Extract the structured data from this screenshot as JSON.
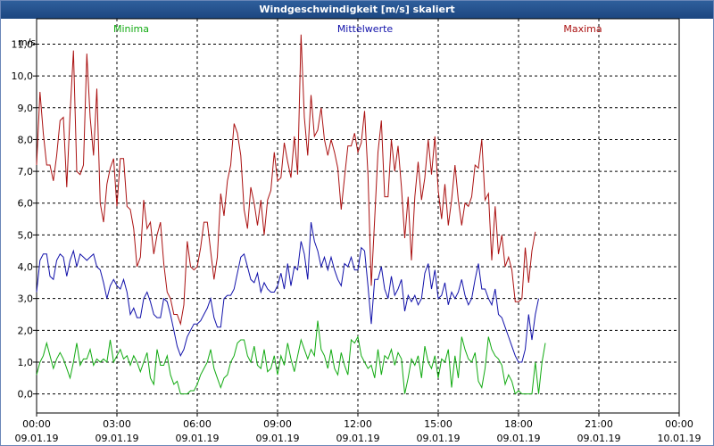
{
  "window": {
    "title": "Windgeschwindigkeit [m/s] skaliert"
  },
  "chart_data": {
    "type": "line",
    "title": "Windgeschwindigkeit [m/s] skaliert",
    "ylabel": "m/s",
    "xlabel": "",
    "ylim": [
      -0.6,
      11.8
    ],
    "xlim": [
      0,
      24
    ],
    "grid": true,
    "legend_position": "top",
    "yticks": [
      0,
      1,
      2,
      3,
      4,
      5,
      6,
      7,
      8,
      9,
      10,
      11
    ],
    "ytick_labels": [
      "0,0",
      "1,0",
      "2,0",
      "3,0",
      "4,0",
      "5,0",
      "6,0",
      "7,0",
      "8,0",
      "9,0",
      "10,0",
      "11,0"
    ],
    "xticks": [
      0,
      3,
      6,
      9,
      12,
      15,
      18,
      21,
      24
    ],
    "xtick_labels": [
      {
        "time": "00:00",
        "date": "09.01.19"
      },
      {
        "time": "03:00",
        "date": "09.01.19"
      },
      {
        "time": "06:00",
        "date": "09.01.19"
      },
      {
        "time": "09:00",
        "date": "09.01.19"
      },
      {
        "time": "12:00",
        "date": "09.01.19"
      },
      {
        "time": "15:00",
        "date": "09.01.19"
      },
      {
        "time": "18:00",
        "date": "09.01.19"
      },
      {
        "time": "21:00",
        "date": "09.01.19"
      },
      {
        "time": "00:00",
        "date": "10.01.19"
      }
    ],
    "series": [
      {
        "name": "Maxima",
        "color": "#aa1111",
        "x_start": 0,
        "x_step": 0.125,
        "values": [
          7.2,
          9.5,
          8.2,
          7.2,
          7.2,
          6.7,
          7.5,
          8.6,
          8.7,
          6.5,
          8.8,
          10.8,
          7.0,
          6.9,
          7.2,
          10.7,
          8.7,
          7.5,
          9.6,
          6.0,
          5.4,
          6.6,
          7.1,
          7.4,
          5.9,
          7.4,
          7.4,
          5.9,
          5.8,
          5.2,
          4.0,
          4.3,
          6.1,
          5.2,
          5.4,
          4.4,
          5.0,
          5.4,
          4.1,
          3.2,
          3.0,
          2.5,
          2.5,
          2.2,
          2.8,
          4.8,
          4.0,
          3.9,
          4.0,
          4.6,
          5.4,
          5.4,
          4.5,
          3.6,
          4.3,
          6.3,
          5.6,
          6.7,
          7.2,
          8.5,
          8.2,
          7.5,
          5.8,
          5.2,
          6.5,
          6.0,
          5.3,
          6.1,
          5.0,
          6.1,
          6.4,
          7.6,
          6.7,
          6.8,
          7.9,
          7.3,
          6.8,
          8.1,
          6.9,
          11.3,
          8.7,
          7.5,
          9.4,
          8.1,
          8.3,
          9.0,
          8.0,
          7.5,
          8.0,
          7.6,
          7.1,
          5.8,
          6.8,
          7.8,
          7.8,
          8.2,
          7.6,
          7.9,
          8.9,
          6.9,
          3.4,
          5.5,
          7.6,
          8.6,
          6.2,
          6.2,
          8.0,
          7.0,
          7.8,
          6.5,
          4.9,
          6.2,
          4.2,
          6.2,
          7.3,
          6.1,
          6.8,
          8.0,
          6.9,
          8.1,
          6.4,
          5.5,
          6.6,
          5.3,
          6.1,
          7.2,
          6.1,
          5.3,
          6.0,
          5.9,
          6.2,
          7.2,
          7.1,
          8.0,
          6.1,
          6.3,
          4.2,
          5.9,
          4.4,
          5.0,
          4.0,
          4.3,
          3.9,
          2.9,
          2.9,
          3.0,
          4.6,
          3.5,
          4.5,
          5.1
        ]
      },
      {
        "name": "Mittelwerte",
        "color": "#1111aa",
        "x_start": 0,
        "x_step": 0.125,
        "values": [
          3.2,
          4.2,
          4.4,
          4.4,
          3.7,
          3.6,
          4.2,
          4.4,
          4.3,
          3.7,
          4.2,
          4.5,
          4.0,
          4.4,
          4.3,
          4.2,
          4.3,
          4.4,
          4.0,
          3.9,
          3.5,
          3.0,
          3.4,
          3.6,
          3.4,
          3.3,
          3.6,
          3.2,
          2.5,
          2.7,
          2.4,
          2.4,
          3.0,
          3.2,
          2.9,
          2.5,
          2.4,
          2.4,
          3.0,
          2.9,
          2.5,
          2.0,
          1.5,
          1.2,
          1.4,
          1.8,
          2.0,
          2.2,
          2.2,
          2.3,
          2.5,
          2.7,
          3.0,
          2.4,
          2.1,
          2.1,
          3.0,
          3.1,
          3.1,
          3.3,
          3.8,
          4.3,
          4.4,
          4.0,
          3.6,
          3.5,
          3.8,
          3.2,
          3.5,
          3.3,
          3.2,
          3.2,
          3.4,
          3.8,
          3.3,
          4.1,
          3.4,
          4.0,
          3.9,
          4.8,
          4.4,
          3.6,
          5.4,
          4.8,
          4.5,
          4.0,
          4.3,
          3.9,
          4.3,
          3.9,
          3.6,
          3.4,
          4.1,
          4.0,
          4.3,
          3.9,
          3.9,
          4.6,
          4.5,
          3.4,
          2.2,
          3.6,
          3.6,
          4.0,
          3.3,
          3.0,
          3.7,
          3.1,
          3.3,
          3.6,
          2.6,
          3.1,
          2.9,
          3.1,
          2.8,
          3.0,
          3.8,
          4.1,
          3.3,
          3.9,
          3.0,
          3.1,
          3.5,
          2.8,
          3.2,
          3.0,
          3.2,
          3.6,
          3.1,
          2.8,
          3.0,
          3.6,
          4.1,
          3.3,
          3.3,
          3.0,
          2.8,
          3.3,
          2.5,
          2.4,
          2.1,
          1.8,
          1.5,
          1.2,
          1.0,
          1.0,
          1.4,
          2.5,
          1.7,
          2.5,
          3.0
        ]
      },
      {
        "name": "Minima",
        "color": "#11aa11",
        "x_start": 0,
        "x_step": 0.125,
        "values": [
          0.6,
          1.0,
          1.2,
          1.6,
          1.2,
          0.8,
          1.1,
          1.3,
          1.1,
          0.8,
          0.5,
          1.0,
          1.6,
          0.9,
          1.1,
          1.1,
          1.4,
          0.9,
          1.1,
          1.0,
          1.1,
          1.0,
          1.7,
          1.0,
          1.2,
          1.4,
          1.1,
          1.2,
          0.9,
          1.2,
          1.0,
          0.7,
          1.0,
          1.3,
          0.5,
          0.3,
          1.4,
          0.9,
          0.9,
          1.2,
          0.6,
          0.3,
          0.4,
          0.0,
          0.0,
          0.0,
          0.1,
          0.1,
          0.3,
          0.6,
          0.8,
          1.0,
          1.4,
          0.8,
          0.5,
          0.2,
          0.5,
          0.6,
          1.0,
          1.2,
          1.6,
          1.7,
          1.7,
          1.2,
          1.0,
          1.5,
          0.9,
          0.8,
          1.4,
          0.7,
          0.8,
          1.2,
          0.6,
          1.2,
          0.9,
          1.6,
          1.1,
          0.7,
          1.2,
          1.7,
          1.4,
          1.1,
          1.4,
          1.2,
          2.3,
          1.4,
          1.2,
          0.8,
          1.4,
          0.8,
          0.6,
          1.3,
          0.9,
          0.6,
          1.7,
          1.6,
          1.8,
          1.2,
          1.0,
          0.8,
          0.9,
          0.5,
          1.4,
          0.6,
          1.2,
          1.1,
          1.4,
          0.9,
          1.3,
          1.1,
          0.0,
          0.5,
          1.1,
          0.9,
          1.2,
          0.5,
          1.5,
          1.0,
          0.8,
          1.2,
          0.5,
          1.1,
          1.0,
          1.4,
          0.2,
          1.2,
          0.5,
          1.8,
          1.4,
          1.1,
          1.0,
          1.3,
          0.4,
          0.2,
          0.8,
          1.8,
          1.4,
          1.2,
          1.1,
          0.9,
          0.3,
          0.6,
          0.4,
          0.0,
          0.1,
          0.0,
          0.0,
          0.0,
          0.0,
          1.0,
          0.0,
          1.0,
          1.6
        ]
      }
    ]
  }
}
